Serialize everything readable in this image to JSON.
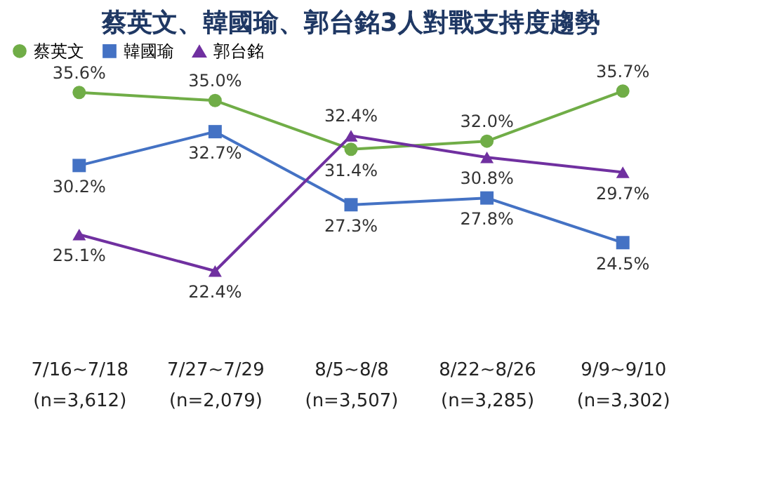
{
  "chart_data": {
    "type": "line",
    "title": "蔡英文、韓國瑜、郭台銘3人對戰支持度趨勢",
    "categories": [
      "7/16~7/18\n(n=3,612)",
      "7/27~7/29\n(n=2,079)",
      "8/5~8/8\n(n=3,507)",
      "8/22~8/26\n(n=3,285)",
      "9/9~9/10\n(n=3,302)"
    ],
    "series": [
      {
        "name": "蔡英文",
        "color": "#70ad47",
        "marker": "circle",
        "values": [
          35.6,
          35.0,
          31.4,
          32.0,
          35.7
        ],
        "value_labels": [
          "35.6%",
          "35.0%",
          "31.4%",
          "32.0%",
          "35.7%"
        ]
      },
      {
        "name": "韓國瑜",
        "color": "#4472c4",
        "marker": "square",
        "values": [
          30.2,
          32.7,
          27.3,
          27.8,
          24.5
        ],
        "value_labels": [
          "30.2%",
          "32.7%",
          "27.3%",
          "27.8%",
          "24.5%"
        ]
      },
      {
        "name": "郭台銘",
        "color": "#7030a0",
        "marker": "triangle",
        "values": [
          25.1,
          22.4,
          32.4,
          30.8,
          29.7
        ],
        "value_labels": [
          "25.1%",
          "22.4%",
          "32.4%",
          "30.8%",
          "29.7%"
        ]
      }
    ],
    "legend": "top",
    "grid": false
  }
}
